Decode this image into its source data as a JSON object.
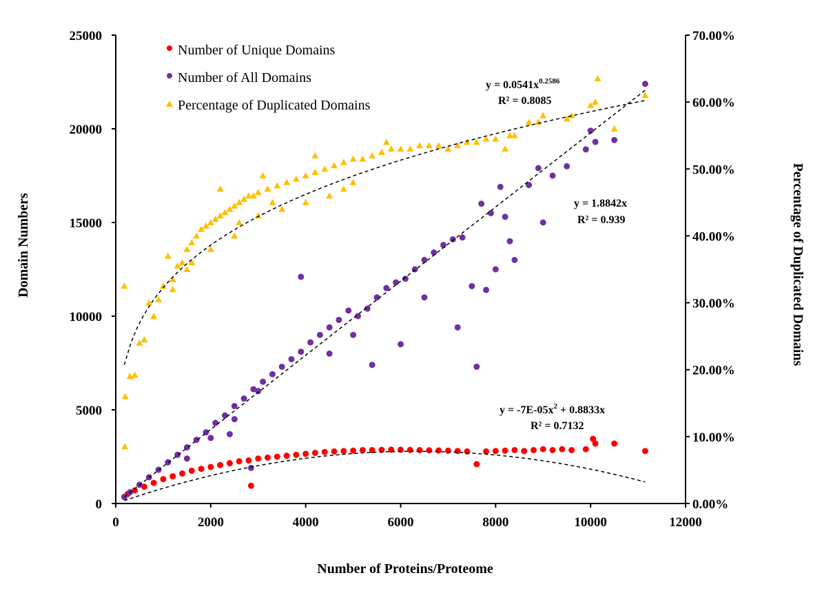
{
  "chart_data": {
    "type": "scatter",
    "xlabel": "Number of Proteins/Proteome",
    "ylabel": "Domain Numbers",
    "y2label": "Percentage of Duplicated Domains",
    "xlim": [
      0,
      12000
    ],
    "ylim": [
      0,
      25000
    ],
    "y2lim": [
      0,
      70
    ],
    "x_ticks": [
      "0",
      "2000",
      "4000",
      "6000",
      "8000",
      "10000",
      "12000"
    ],
    "y_ticks": [
      "0",
      "5000",
      "10000",
      "15000",
      "20000",
      "25000"
    ],
    "y2_ticks": [
      "0.00%",
      "10.00%",
      "20.00%",
      "30.00%",
      "40.00%",
      "50.00%",
      "60.00%",
      "70.00%"
    ],
    "grid": false,
    "legend_position": "top-left",
    "series": [
      {
        "name": "Number of Unique Domains",
        "color": "#ff0000",
        "marker": "circle",
        "axis": "left",
        "points": [
          [
            180,
            350
          ],
          [
            250,
            500
          ],
          [
            400,
            700
          ],
          [
            600,
            900
          ],
          [
            800,
            1100
          ],
          [
            1000,
            1300
          ],
          [
            1200,
            1450
          ],
          [
            1400,
            1600
          ],
          [
            1600,
            1750
          ],
          [
            1800,
            1850
          ],
          [
            2000,
            1950
          ],
          [
            2200,
            2050
          ],
          [
            2400,
            2150
          ],
          [
            2600,
            2250
          ],
          [
            2800,
            2300
          ],
          [
            2850,
            950
          ],
          [
            3000,
            2400
          ],
          [
            3200,
            2450
          ],
          [
            3400,
            2500
          ],
          [
            3600,
            2550
          ],
          [
            3800,
            2600
          ],
          [
            4000,
            2650
          ],
          [
            4200,
            2700
          ],
          [
            4400,
            2750
          ],
          [
            4600,
            2780
          ],
          [
            4800,
            2800
          ],
          [
            5000,
            2820
          ],
          [
            5200,
            2850
          ],
          [
            5400,
            2850
          ],
          [
            5600,
            2860
          ],
          [
            5800,
            2870
          ],
          [
            6000,
            2870
          ],
          [
            6200,
            2860
          ],
          [
            6400,
            2850
          ],
          [
            6600,
            2840
          ],
          [
            6800,
            2830
          ],
          [
            7000,
            2820
          ],
          [
            7200,
            2800
          ],
          [
            7400,
            2780
          ],
          [
            7600,
            2100
          ],
          [
            7800,
            2780
          ],
          [
            8000,
            2800
          ],
          [
            8200,
            2820
          ],
          [
            8400,
            2850
          ],
          [
            8600,
            2800
          ],
          [
            8800,
            2850
          ],
          [
            9000,
            2900
          ],
          [
            9200,
            2850
          ],
          [
            9400,
            2900
          ],
          [
            9600,
            2850
          ],
          [
            9900,
            2900
          ],
          [
            10050,
            3450
          ],
          [
            10100,
            3200
          ],
          [
            10500,
            3200
          ],
          [
            11150,
            2800
          ]
        ]
      },
      {
        "name": "Number of All Domains",
        "color": "#7030a0",
        "marker": "circle",
        "axis": "left",
        "points": [
          [
            180,
            350
          ],
          [
            300,
            600
          ],
          [
            500,
            1000
          ],
          [
            700,
            1400
          ],
          [
            900,
            1800
          ],
          [
            1100,
            2200
          ],
          [
            1300,
            2600
          ],
          [
            1500,
            3000
          ],
          [
            1700,
            3400
          ],
          [
            1900,
            3800
          ],
          [
            2100,
            4300
          ],
          [
            2300,
            4700
          ],
          [
            2500,
            5200
          ],
          [
            2700,
            5600
          ],
          [
            2900,
            6100
          ],
          [
            3100,
            6500
          ],
          [
            3300,
            6900
          ],
          [
            3500,
            7300
          ],
          [
            3700,
            7700
          ],
          [
            3900,
            8100
          ],
          [
            4100,
            8600
          ],
          [
            4300,
            9000
          ],
          [
            4500,
            9400
          ],
          [
            4700,
            9800
          ],
          [
            4900,
            10300
          ],
          [
            5100,
            10000
          ],
          [
            5300,
            10400
          ],
          [
            5500,
            11000
          ],
          [
            5700,
            11500
          ],
          [
            5900,
            11800
          ],
          [
            6100,
            12000
          ],
          [
            6300,
            12500
          ],
          [
            6500,
            13000
          ],
          [
            6700,
            13400
          ],
          [
            6900,
            13800
          ],
          [
            7100,
            14100
          ],
          [
            7300,
            14200
          ],
          [
            7600,
            7300
          ],
          [
            7700,
            16000
          ],
          [
            7900,
            15500
          ],
          [
            8100,
            16900
          ],
          [
            8200,
            15300
          ],
          [
            8300,
            14000
          ],
          [
            8400,
            13000
          ],
          [
            8700,
            17000
          ],
          [
            8900,
            17900
          ],
          [
            9000,
            15000
          ],
          [
            9200,
            17500
          ],
          [
            9500,
            18000
          ],
          [
            9900,
            18900
          ],
          [
            10000,
            19900
          ],
          [
            10100,
            19300
          ],
          [
            10500,
            19400
          ],
          [
            11150,
            22400
          ],
          [
            3900,
            12100
          ],
          [
            5400,
            7400
          ],
          [
            7200,
            9400
          ],
          [
            6000,
            8500
          ],
          [
            3000,
            6000
          ],
          [
            2500,
            4500
          ],
          [
            2000,
            3500
          ],
          [
            1500,
            2400
          ],
          [
            4500,
            8000
          ],
          [
            5000,
            9000
          ],
          [
            6500,
            11000
          ],
          [
            7500,
            11600
          ],
          [
            7800,
            11400
          ],
          [
            8000,
            12500
          ],
          [
            2850,
            1900
          ],
          [
            2400,
            3700
          ]
        ]
      },
      {
        "name": "Percentage of Duplicated Domains",
        "color": "#ffc000",
        "marker": "triangle",
        "axis": "right",
        "points": [
          [
            180,
            32.5
          ],
          [
            190,
            8.5
          ],
          [
            200,
            16
          ],
          [
            300,
            19
          ],
          [
            400,
            19.2
          ],
          [
            500,
            24
          ],
          [
            600,
            24.5
          ],
          [
            700,
            30
          ],
          [
            800,
            28
          ],
          [
            900,
            30.5
          ],
          [
            1000,
            32.5
          ],
          [
            1100,
            37
          ],
          [
            1200,
            33.5
          ],
          [
            1300,
            35.5
          ],
          [
            1400,
            36
          ],
          [
            1500,
            38
          ],
          [
            1600,
            39
          ],
          [
            1700,
            40
          ],
          [
            1800,
            41
          ],
          [
            1900,
            41.5
          ],
          [
            2000,
            42
          ],
          [
            2100,
            42.5
          ],
          [
            2200,
            43
          ],
          [
            2300,
            43.5
          ],
          [
            2400,
            44
          ],
          [
            2500,
            44.5
          ],
          [
            2600,
            45
          ],
          [
            2700,
            45.5
          ],
          [
            2800,
            46
          ],
          [
            2900,
            46
          ],
          [
            3000,
            46.5
          ],
          [
            3200,
            47
          ],
          [
            3400,
            47.5
          ],
          [
            3600,
            48
          ],
          [
            3800,
            48.5
          ],
          [
            4000,
            49
          ],
          [
            4200,
            49.5
          ],
          [
            4400,
            50
          ],
          [
            4600,
            50.5
          ],
          [
            4800,
            51
          ],
          [
            5000,
            51.5
          ],
          [
            5200,
            51.5
          ],
          [
            5400,
            52
          ],
          [
            5600,
            52.5
          ],
          [
            5800,
            53
          ],
          [
            6000,
            53
          ],
          [
            6200,
            53
          ],
          [
            6400,
            53.5
          ],
          [
            6600,
            53.5
          ],
          [
            6800,
            53.5
          ],
          [
            7000,
            53
          ],
          [
            7200,
            53.5
          ],
          [
            7400,
            54
          ],
          [
            7600,
            54
          ],
          [
            7800,
            54.5
          ],
          [
            8000,
            54.5
          ],
          [
            8200,
            53
          ],
          [
            8300,
            55
          ],
          [
            8400,
            55
          ],
          [
            8700,
            57
          ],
          [
            8900,
            57
          ],
          [
            9000,
            58
          ],
          [
            9500,
            57.5
          ],
          [
            9600,
            58
          ],
          [
            10000,
            59.5
          ],
          [
            10100,
            60
          ],
          [
            10150,
            63.5
          ],
          [
            10500,
            56
          ],
          [
            11150,
            61
          ],
          [
            2000,
            38
          ],
          [
            3000,
            43
          ],
          [
            4000,
            45
          ],
          [
            5000,
            48
          ],
          [
            1500,
            35
          ],
          [
            2500,
            40
          ],
          [
            3500,
            44
          ],
          [
            4500,
            46
          ],
          [
            2200,
            47
          ],
          [
            3100,
            49
          ],
          [
            4200,
            52
          ],
          [
            5700,
            54
          ],
          [
            1200,
            32
          ],
          [
            1600,
            36
          ],
          [
            2600,
            42
          ],
          [
            3300,
            45
          ],
          [
            4800,
            47
          ]
        ]
      }
    ],
    "trendlines": [
      {
        "series": "Percentage of Duplicated Domains",
        "type": "power",
        "coef": 0.0541,
        "exponent": 0.2586,
        "equation_prefix": "y = 0.0541x",
        "equation_exp": "0.2586",
        "r2": "R² = 0.8085"
      },
      {
        "series": "Number of All Domains",
        "type": "linear",
        "slope": 1.8842,
        "equation": "y = 1.8842x",
        "r2": "R² = 0.939"
      },
      {
        "series": "Number of Unique Domains",
        "type": "polynomial",
        "a": -7e-05,
        "b": 0.8833,
        "equation_prefix": "y = -7E-05x",
        "equation_exp": "2",
        "equation_suffix": " + 0.8833x",
        "r2": "R² = 0.7132"
      }
    ]
  }
}
